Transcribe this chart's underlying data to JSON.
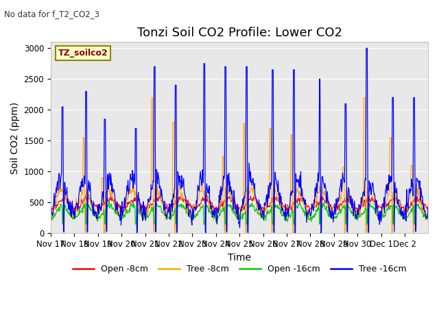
{
  "title": "Tonzi Soil CO2 Profile: Lower CO2",
  "subtitle": "No data for f_T2_CO2_3",
  "ylabel": "Soil CO2 (ppm)",
  "xlabel": "Time",
  "legend_label": "TZ_soilco2",
  "ylim": [
    0,
    3100
  ],
  "yticks": [
    0,
    500,
    1000,
    1500,
    2000,
    2500,
    3000
  ],
  "xtick_labels": [
    "Nov 17",
    "Nov 18",
    "Nov 19",
    "Nov 20",
    "Nov 21",
    "Nov 22",
    "Nov 23",
    "Nov 24",
    "Nov 25",
    "Nov 26",
    "Nov 27",
    "Nov 28",
    "Nov 29",
    "Nov 30",
    "Dec 1",
    "Dec 2"
  ],
  "colors": {
    "open_8cm": "#ff0000",
    "tree_8cm": "#ffa500",
    "open_16cm": "#00cc00",
    "tree_16cm": "#0000ff"
  },
  "legend_entries": [
    "Open -8cm",
    "Tree -8cm",
    "Open -16cm",
    "Tree -16cm"
  ],
  "bg_color": "#e8e8e8",
  "title_fontsize": 13,
  "label_fontsize": 10,
  "tick_fontsize": 8.5
}
